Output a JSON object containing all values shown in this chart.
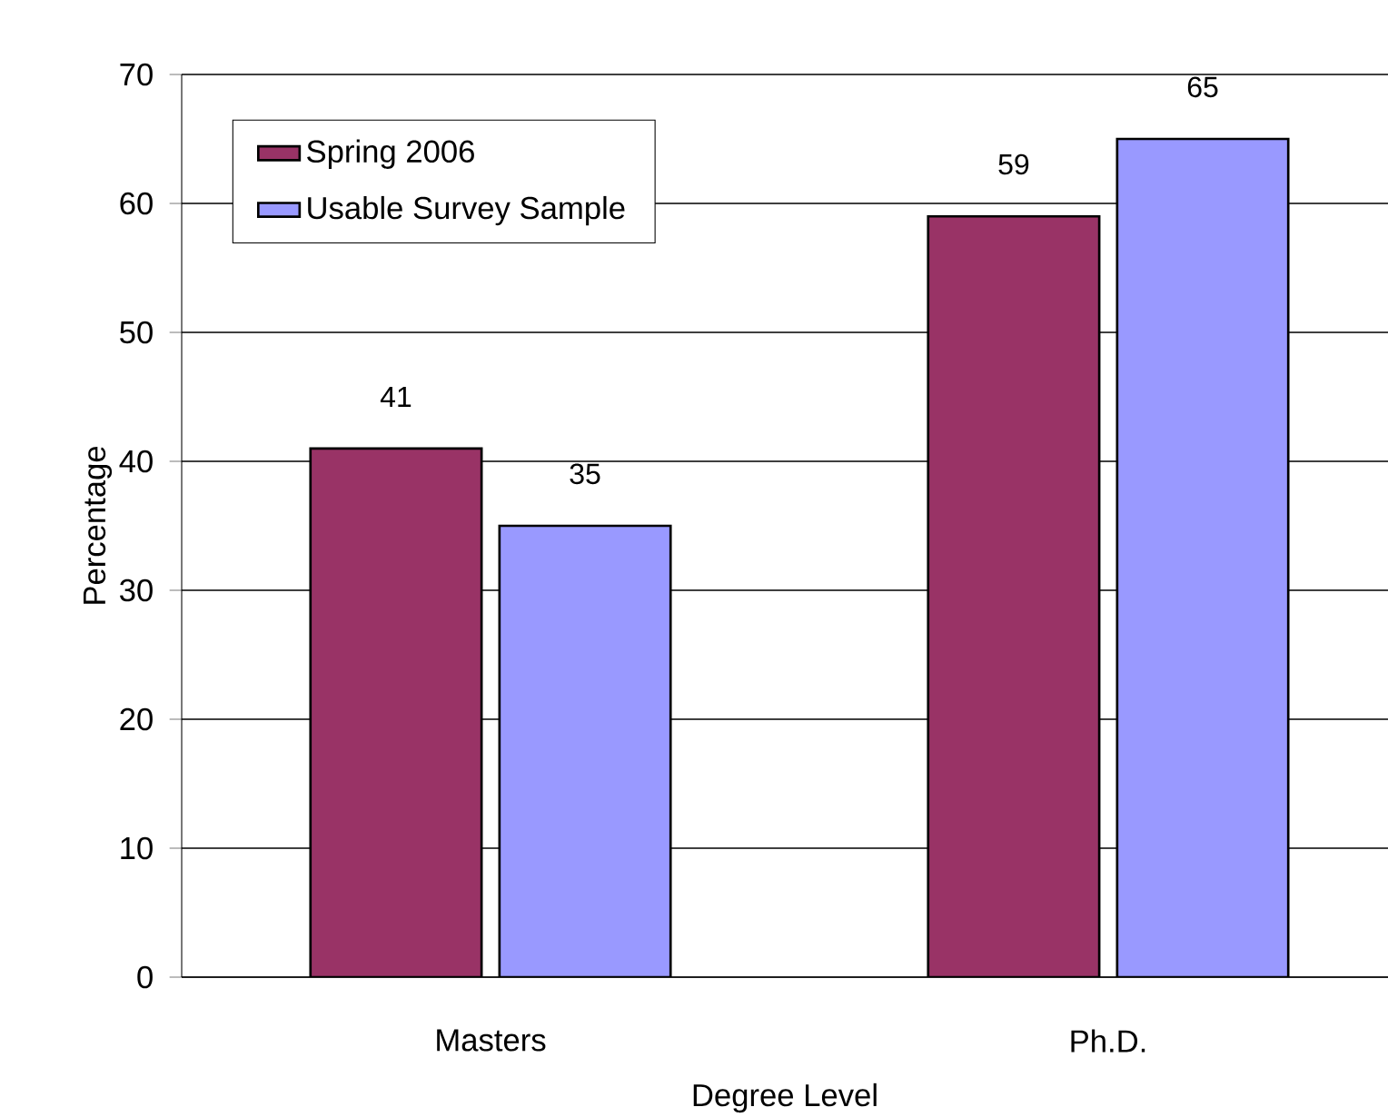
{
  "chart_data": {
    "type": "bar",
    "xlabel": "Degree Level",
    "ylabel": "Percentage",
    "categories": [
      "Masters",
      "Ph.D."
    ],
    "series": [
      {
        "name": "Spring 2006",
        "color": "#993366",
        "values": [
          41,
          59
        ]
      },
      {
        "name": "Usable Survey Sample",
        "color": "#9999ff",
        "values": [
          35,
          65
        ]
      }
    ],
    "ylim": [
      0,
      70
    ],
    "yticks": [
      0,
      10,
      20,
      30,
      40,
      50,
      60,
      70
    ],
    "grid": "y",
    "legend": "top left",
    "data_labels": true
  }
}
